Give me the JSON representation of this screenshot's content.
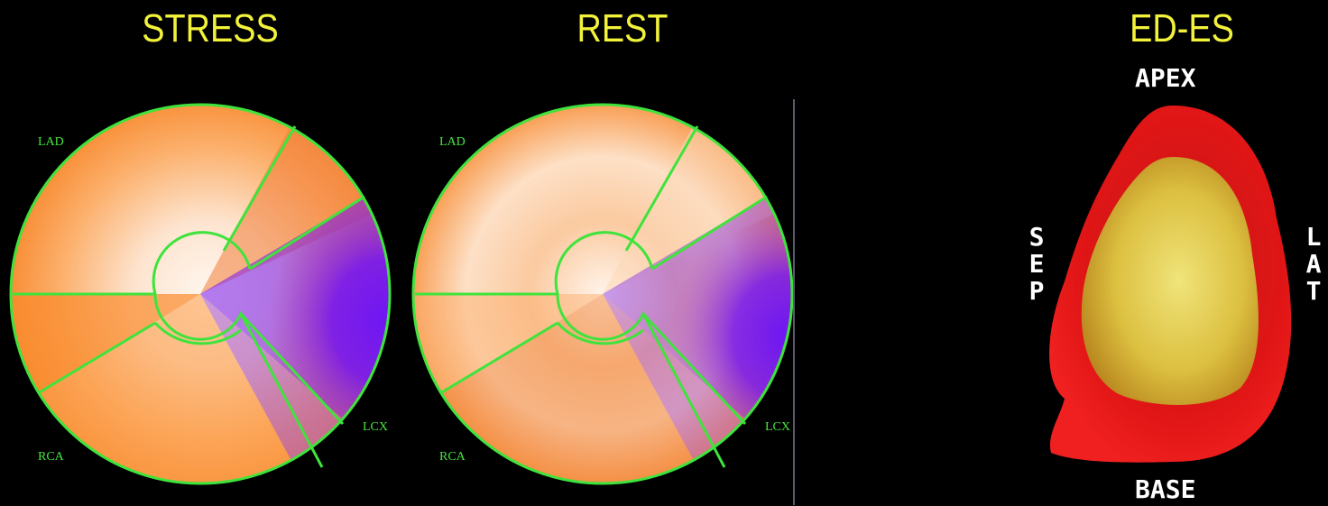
{
  "titles": {
    "stress": "STRESS",
    "rest": "REST",
    "edes": "ED-ES"
  },
  "segments": {
    "lad": "LAD",
    "rca": "RCA",
    "lcx": "LCX"
  },
  "orientation": {
    "apex": "APEX",
    "base": "BASE",
    "septal": "SEP",
    "lateral": "LAT"
  },
  "colors": {
    "title": "#f2f23a",
    "outline": "#3fe33c",
    "label": "#46e83c",
    "high_uptake": "#fff4ea",
    "mid_uptake": "#fb8a28",
    "low_uptake": "#7a1cf0",
    "ed_contour": "#e61414",
    "es_contour": "#e6cc48"
  }
}
